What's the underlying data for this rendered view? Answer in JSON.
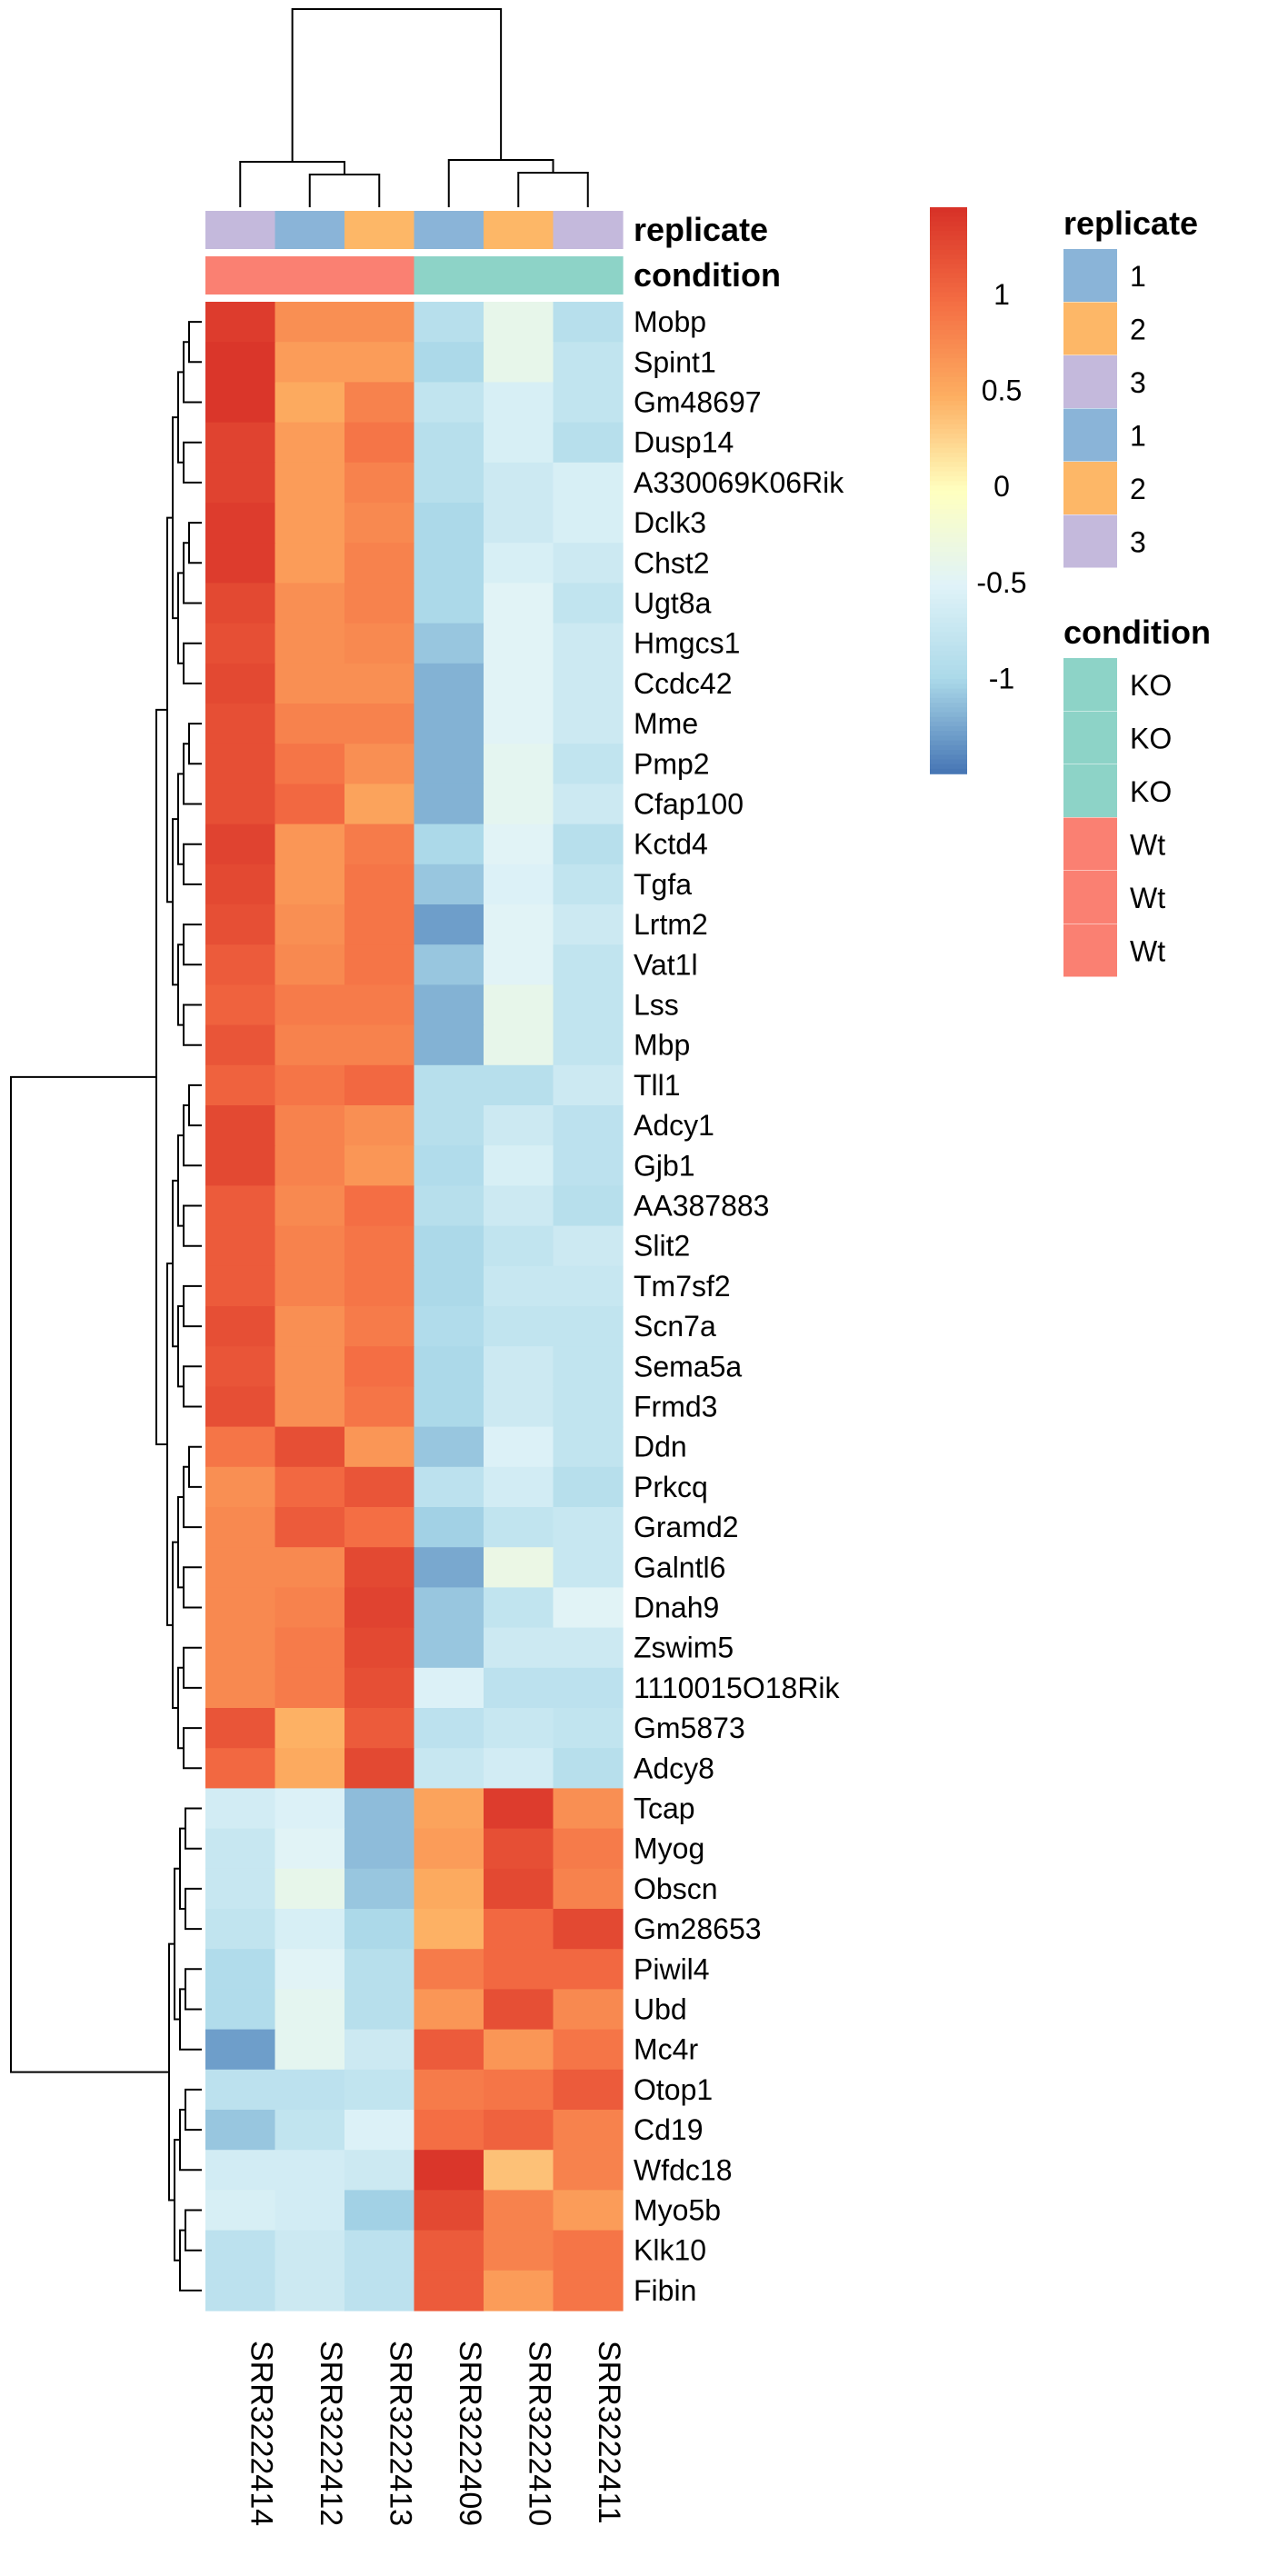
{
  "chart_data": {
    "type": "heatmap",
    "columns": [
      "SRR3222414",
      "SRR3222412",
      "SRR3222413",
      "SRR3222409",
      "SRR3222410",
      "SRR3222411"
    ],
    "rows": [
      "Mobp",
      "Spint1",
      "Gm48697",
      "Dusp14",
      "A330069K06Rik",
      "Dclk3",
      "Chst2",
      "Ugt8a",
      "Hmgcs1",
      "Ccdc42",
      "Mme",
      "Pmp2",
      "Cfap100",
      "Kctd4",
      "Tgfa",
      "Lrtm2",
      "Vat1l",
      "Lss",
      "Mbp",
      "Tll1",
      "Adcy1",
      "Gjb1",
      "AA387883",
      "Slit2",
      "Tm7sf2",
      "Scn7a",
      "Sema5a",
      "Frmd3",
      "Ddn",
      "Prkcq",
      "Gramd2",
      "Galntl6",
      "Dnah9",
      "Zswim5",
      "1110015O18Rik",
      "Gm5873",
      "Adcy8",
      "Tcap",
      "Myog",
      "Obscn",
      "Gm28653",
      "Piwil4",
      "Ubd",
      "Mc4r",
      "Otop1",
      "Cd19",
      "Wfdc18",
      "Myo5b",
      "Klk10",
      "Fibin"
    ],
    "values": [
      [
        1.35,
        0.7,
        0.7,
        -0.9,
        -0.4,
        -0.9
      ],
      [
        1.4,
        0.6,
        0.6,
        -1.0,
        -0.4,
        -0.8
      ],
      [
        1.4,
        0.5,
        0.8,
        -0.8,
        -0.6,
        -0.8
      ],
      [
        1.3,
        0.6,
        0.9,
        -0.9,
        -0.6,
        -0.9
      ],
      [
        1.3,
        0.6,
        0.8,
        -0.9,
        -0.7,
        -0.6
      ],
      [
        1.35,
        0.6,
        0.75,
        -1.0,
        -0.7,
        -0.6
      ],
      [
        1.35,
        0.6,
        0.8,
        -1.0,
        -0.6,
        -0.7
      ],
      [
        1.25,
        0.7,
        0.8,
        -1.0,
        -0.5,
        -0.8
      ],
      [
        1.2,
        0.7,
        0.75,
        -1.1,
        -0.5,
        -0.7
      ],
      [
        1.25,
        0.7,
        0.7,
        -1.2,
        -0.5,
        -0.7
      ],
      [
        1.2,
        0.8,
        0.8,
        -1.2,
        -0.5,
        -0.7
      ],
      [
        1.2,
        0.9,
        0.7,
        -1.2,
        -0.45,
        -0.8
      ],
      [
        1.2,
        1.0,
        0.55,
        -1.2,
        -0.45,
        -0.7
      ],
      [
        1.3,
        0.65,
        0.85,
        -1.0,
        -0.5,
        -0.9
      ],
      [
        1.25,
        0.65,
        0.9,
        -1.1,
        -0.55,
        -0.8
      ],
      [
        1.2,
        0.7,
        0.9,
        -1.3,
        -0.5,
        -0.7
      ],
      [
        1.1,
        0.75,
        0.9,
        -1.1,
        -0.5,
        -0.8
      ],
      [
        1.05,
        0.85,
        0.85,
        -1.2,
        -0.4,
        -0.8
      ],
      [
        1.15,
        0.8,
        0.8,
        -1.2,
        -0.4,
        -0.8
      ],
      [
        1.05,
        0.9,
        1.0,
        -0.9,
        -0.9,
        -0.7
      ],
      [
        1.25,
        0.8,
        0.7,
        -0.9,
        -0.7,
        -0.85
      ],
      [
        1.25,
        0.8,
        0.65,
        -0.95,
        -0.6,
        -0.85
      ],
      [
        1.1,
        0.75,
        0.95,
        -0.9,
        -0.7,
        -0.9
      ],
      [
        1.1,
        0.8,
        0.9,
        -1.0,
        -0.8,
        -0.7
      ],
      [
        1.1,
        0.8,
        0.9,
        -1.0,
        -0.75,
        -0.75
      ],
      [
        1.2,
        0.7,
        0.85,
        -0.95,
        -0.8,
        -0.8
      ],
      [
        1.15,
        0.7,
        0.95,
        -1.0,
        -0.7,
        -0.8
      ],
      [
        1.2,
        0.7,
        0.9,
        -1.0,
        -0.7,
        -0.8
      ],
      [
        0.9,
        1.2,
        0.65,
        -1.1,
        -0.55,
        -0.8
      ],
      [
        0.7,
        1.0,
        1.15,
        -0.85,
        -0.65,
        -0.9
      ],
      [
        0.75,
        1.1,
        0.95,
        -1.05,
        -0.8,
        -0.75
      ],
      [
        0.75,
        0.75,
        1.25,
        -1.25,
        -0.35,
        -0.75
      ],
      [
        0.75,
        0.8,
        1.3,
        -1.1,
        -0.8,
        -0.5
      ],
      [
        0.75,
        0.85,
        1.25,
        -1.1,
        -0.7,
        -0.7
      ],
      [
        0.75,
        0.85,
        1.2,
        -0.55,
        -0.85,
        -0.85
      ],
      [
        1.15,
        0.45,
        1.1,
        -0.85,
        -0.75,
        -0.8
      ],
      [
        1.0,
        0.5,
        1.25,
        -0.75,
        -0.65,
        -0.9
      ],
      [
        -0.65,
        -0.55,
        -1.15,
        0.55,
        1.35,
        0.7
      ],
      [
        -0.75,
        -0.5,
        -1.15,
        0.6,
        1.2,
        0.85
      ],
      [
        -0.75,
        -0.4,
        -1.1,
        0.5,
        1.25,
        0.8
      ],
      [
        -0.8,
        -0.6,
        -1.0,
        0.45,
        1.0,
        1.25
      ],
      [
        -0.95,
        -0.5,
        -0.9,
        0.85,
        1.0,
        1.0
      ],
      [
        -0.95,
        -0.45,
        -0.9,
        0.65,
        1.2,
        0.75
      ],
      [
        -1.3,
        -0.45,
        -0.7,
        1.1,
        0.65,
        0.9
      ],
      [
        -0.85,
        -0.85,
        -0.8,
        0.85,
        0.9,
        1.1
      ],
      [
        -1.1,
        -0.8,
        -0.55,
        0.95,
        1.05,
        0.8
      ],
      [
        -0.65,
        -0.65,
        -0.7,
        1.4,
        0.35,
        0.8
      ],
      [
        -0.6,
        -0.65,
        -1.05,
        1.25,
        0.8,
        0.6
      ],
      [
        -0.85,
        -0.7,
        -0.85,
        1.1,
        0.8,
        0.9
      ],
      [
        -0.85,
        -0.7,
        -0.85,
        1.1,
        0.6,
        0.9
      ]
    ],
    "colorbar": {
      "range": [
        -1.5,
        1.45
      ],
      "ticks": [
        1,
        0.5,
        0,
        -0.5,
        -1
      ],
      "tick_labels": [
        "1",
        "0.5",
        "0",
        "-0.5",
        "-1"
      ],
      "colors": [
        "#4575B4",
        "#ABD9E9",
        "#E0F3F8",
        "#FFFFBF",
        "#FDAE61",
        "#F46D43",
        "#D73027"
      ]
    },
    "annotations": {
      "replicate": {
        "title": "replicate",
        "values": [
          "3",
          "1",
          "2",
          "1",
          "2",
          "3"
        ]
      },
      "condition": {
        "title": "condition",
        "values": [
          "Wt",
          "Wt",
          "Wt",
          "KO",
          "KO",
          "KO"
        ]
      }
    },
    "legend": {
      "replicate": {
        "title": "replicate",
        "entries": [
          {
            "label": "1",
            "color": "#8AB4D8"
          },
          {
            "label": "2",
            "color": "#FDB767"
          },
          {
            "label": "3",
            "color": "#C4B9DC"
          },
          {
            "label": "1",
            "color": "#8AB4D8"
          },
          {
            "label": "2",
            "color": "#FDB767"
          },
          {
            "label": "3",
            "color": "#C4B9DC"
          }
        ]
      },
      "condition": {
        "title": "condition",
        "entries": [
          {
            "label": "KO",
            "color": "#8DD3C7"
          },
          {
            "label": "KO",
            "color": "#8DD3C7"
          },
          {
            "label": "KO",
            "color": "#8DD3C7"
          },
          {
            "label": "Wt",
            "color": "#FA8072"
          },
          {
            "label": "Wt",
            "color": "#FA8072"
          },
          {
            "label": "Wt",
            "color": "#FA8072"
          }
        ]
      }
    },
    "annotation_colors": {
      "replicate": {
        "1": "#8AB4D8",
        "2": "#FDB767",
        "3": "#C4B9DC"
      },
      "condition": {
        "KO": "#8DD3C7",
        "Wt": "#FA8072"
      }
    }
  }
}
